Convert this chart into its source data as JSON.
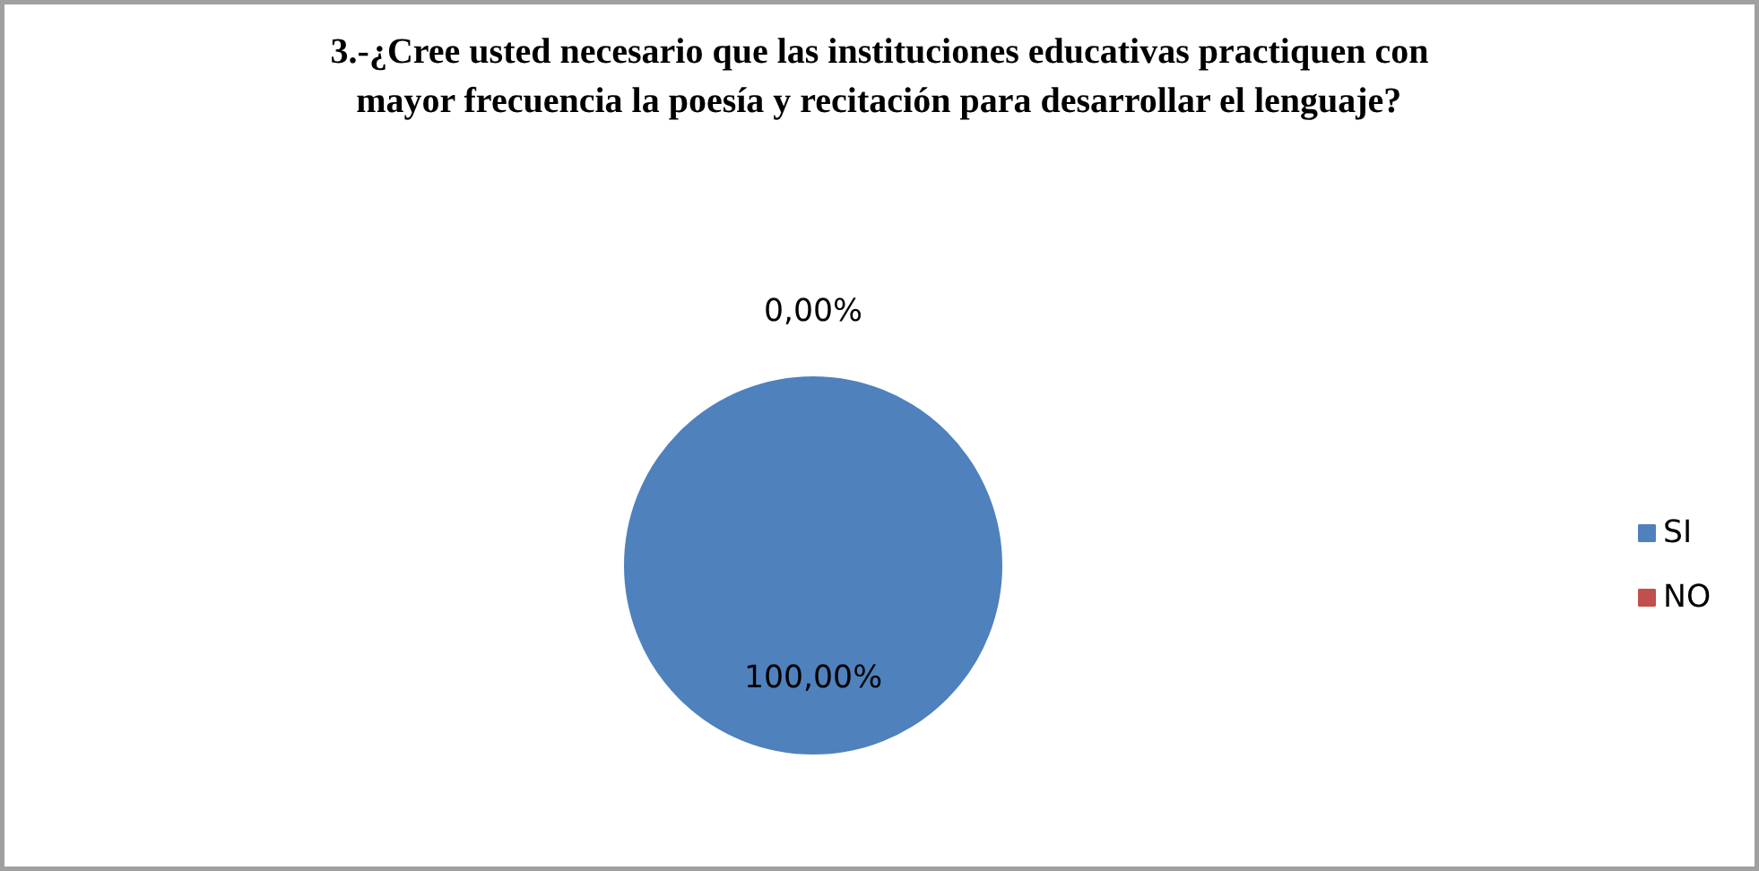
{
  "chart_data": {
    "type": "pie",
    "title": "3.-¿Cree usted necesario que las instituciones educativas practiquen con\nmayor frecuencia la poesía y recitación para desarrollar el lenguaje?",
    "categories": [
      "SI",
      "NO"
    ],
    "values": [
      100,
      0
    ],
    "colors": [
      "#4f81bd",
      "#c0504d"
    ],
    "value_labels": [
      "100,00%",
      "0,00%"
    ],
    "legend": "right"
  }
}
